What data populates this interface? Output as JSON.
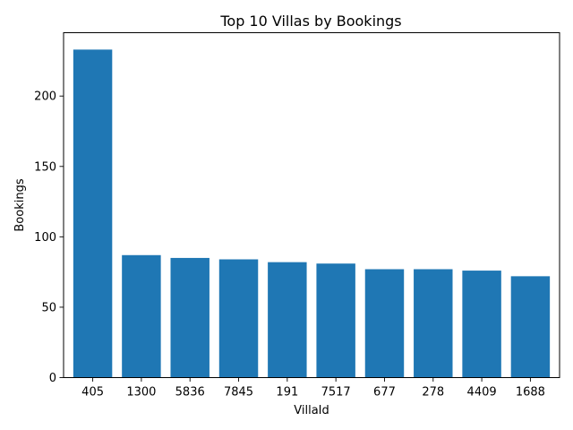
{
  "chart_data": {
    "type": "bar",
    "title": "Top 10 Villas by Bookings",
    "xlabel": "VillaId",
    "ylabel": "Bookings",
    "categories": [
      "405",
      "1300",
      "5836",
      "7845",
      "191",
      "7517",
      "677",
      "278",
      "4409",
      "1688"
    ],
    "values": [
      233,
      87,
      85,
      84,
      82,
      81,
      77,
      77,
      76,
      72
    ],
    "ylim": [
      0,
      245
    ],
    "yticks": [
      0,
      50,
      100,
      150,
      200
    ],
    "bar_color": "#1f77b4",
    "grid": false,
    "legend": "none"
  }
}
